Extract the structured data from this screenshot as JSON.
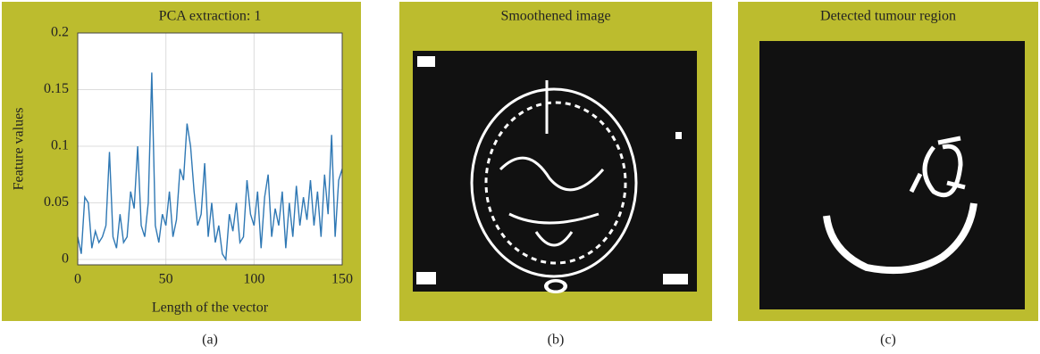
{
  "chart_data": {
    "type": "line",
    "title": "PCA extraction: 1",
    "x_label": "Length of the vector",
    "y_label": "Feature values",
    "x": [
      0,
      2,
      4,
      6,
      8,
      10,
      12,
      14,
      16,
      18,
      20,
      22,
      24,
      26,
      28,
      30,
      32,
      34,
      36,
      38,
      40,
      42,
      44,
      46,
      48,
      50,
      52,
      54,
      56,
      58,
      60,
      62,
      64,
      66,
      68,
      70,
      72,
      74,
      76,
      78,
      80,
      82,
      84,
      86,
      88,
      90,
      92,
      94,
      96,
      98,
      100,
      102,
      104,
      106,
      108,
      110,
      112,
      114,
      116,
      118,
      120,
      122,
      124,
      126,
      128,
      130,
      132,
      134,
      136,
      138,
      140,
      142,
      144,
      146,
      148,
      150
    ],
    "values": [
      0.02,
      0.005,
      0.055,
      0.05,
      0.01,
      0.025,
      0.015,
      0.02,
      0.03,
      0.095,
      0.02,
      0.01,
      0.04,
      0.015,
      0.02,
      0.06,
      0.045,
      0.1,
      0.03,
      0.02,
      0.05,
      0.165,
      0.03,
      0.015,
      0.04,
      0.03,
      0.06,
      0.02,
      0.035,
      0.08,
      0.07,
      0.12,
      0.1,
      0.06,
      0.03,
      0.04,
      0.085,
      0.02,
      0.05,
      0.015,
      0.03,
      0.005,
      0,
      0.04,
      0.025,
      0.05,
      0.015,
      0.02,
      0.07,
      0.04,
      0.03,
      0.06,
      0.01,
      0.055,
      0.075,
      0.02,
      0.045,
      0.03,
      0.06,
      0.01,
      0.05,
      0.02,
      0.065,
      0.03,
      0.055,
      0.035,
      0.07,
      0.03,
      0.06,
      0.02,
      0.075,
      0.04,
      0.11,
      0.02,
      0.07,
      0.08
    ],
    "color": "#2f78b4",
    "xlim": [
      0,
      150
    ],
    "ylim": [
      0,
      0.2
    ],
    "xticks": [
      0,
      50,
      100,
      150
    ],
    "yticks": [
      0,
      0.05,
      0.1,
      0.15,
      0.2
    ],
    "grid": true
  },
  "images": [
    {
      "title": "Smoothened image"
    },
    {
      "title": "Detected tumour region"
    }
  ],
  "captions": [
    "(a)",
    "(b)",
    "(c)"
  ]
}
